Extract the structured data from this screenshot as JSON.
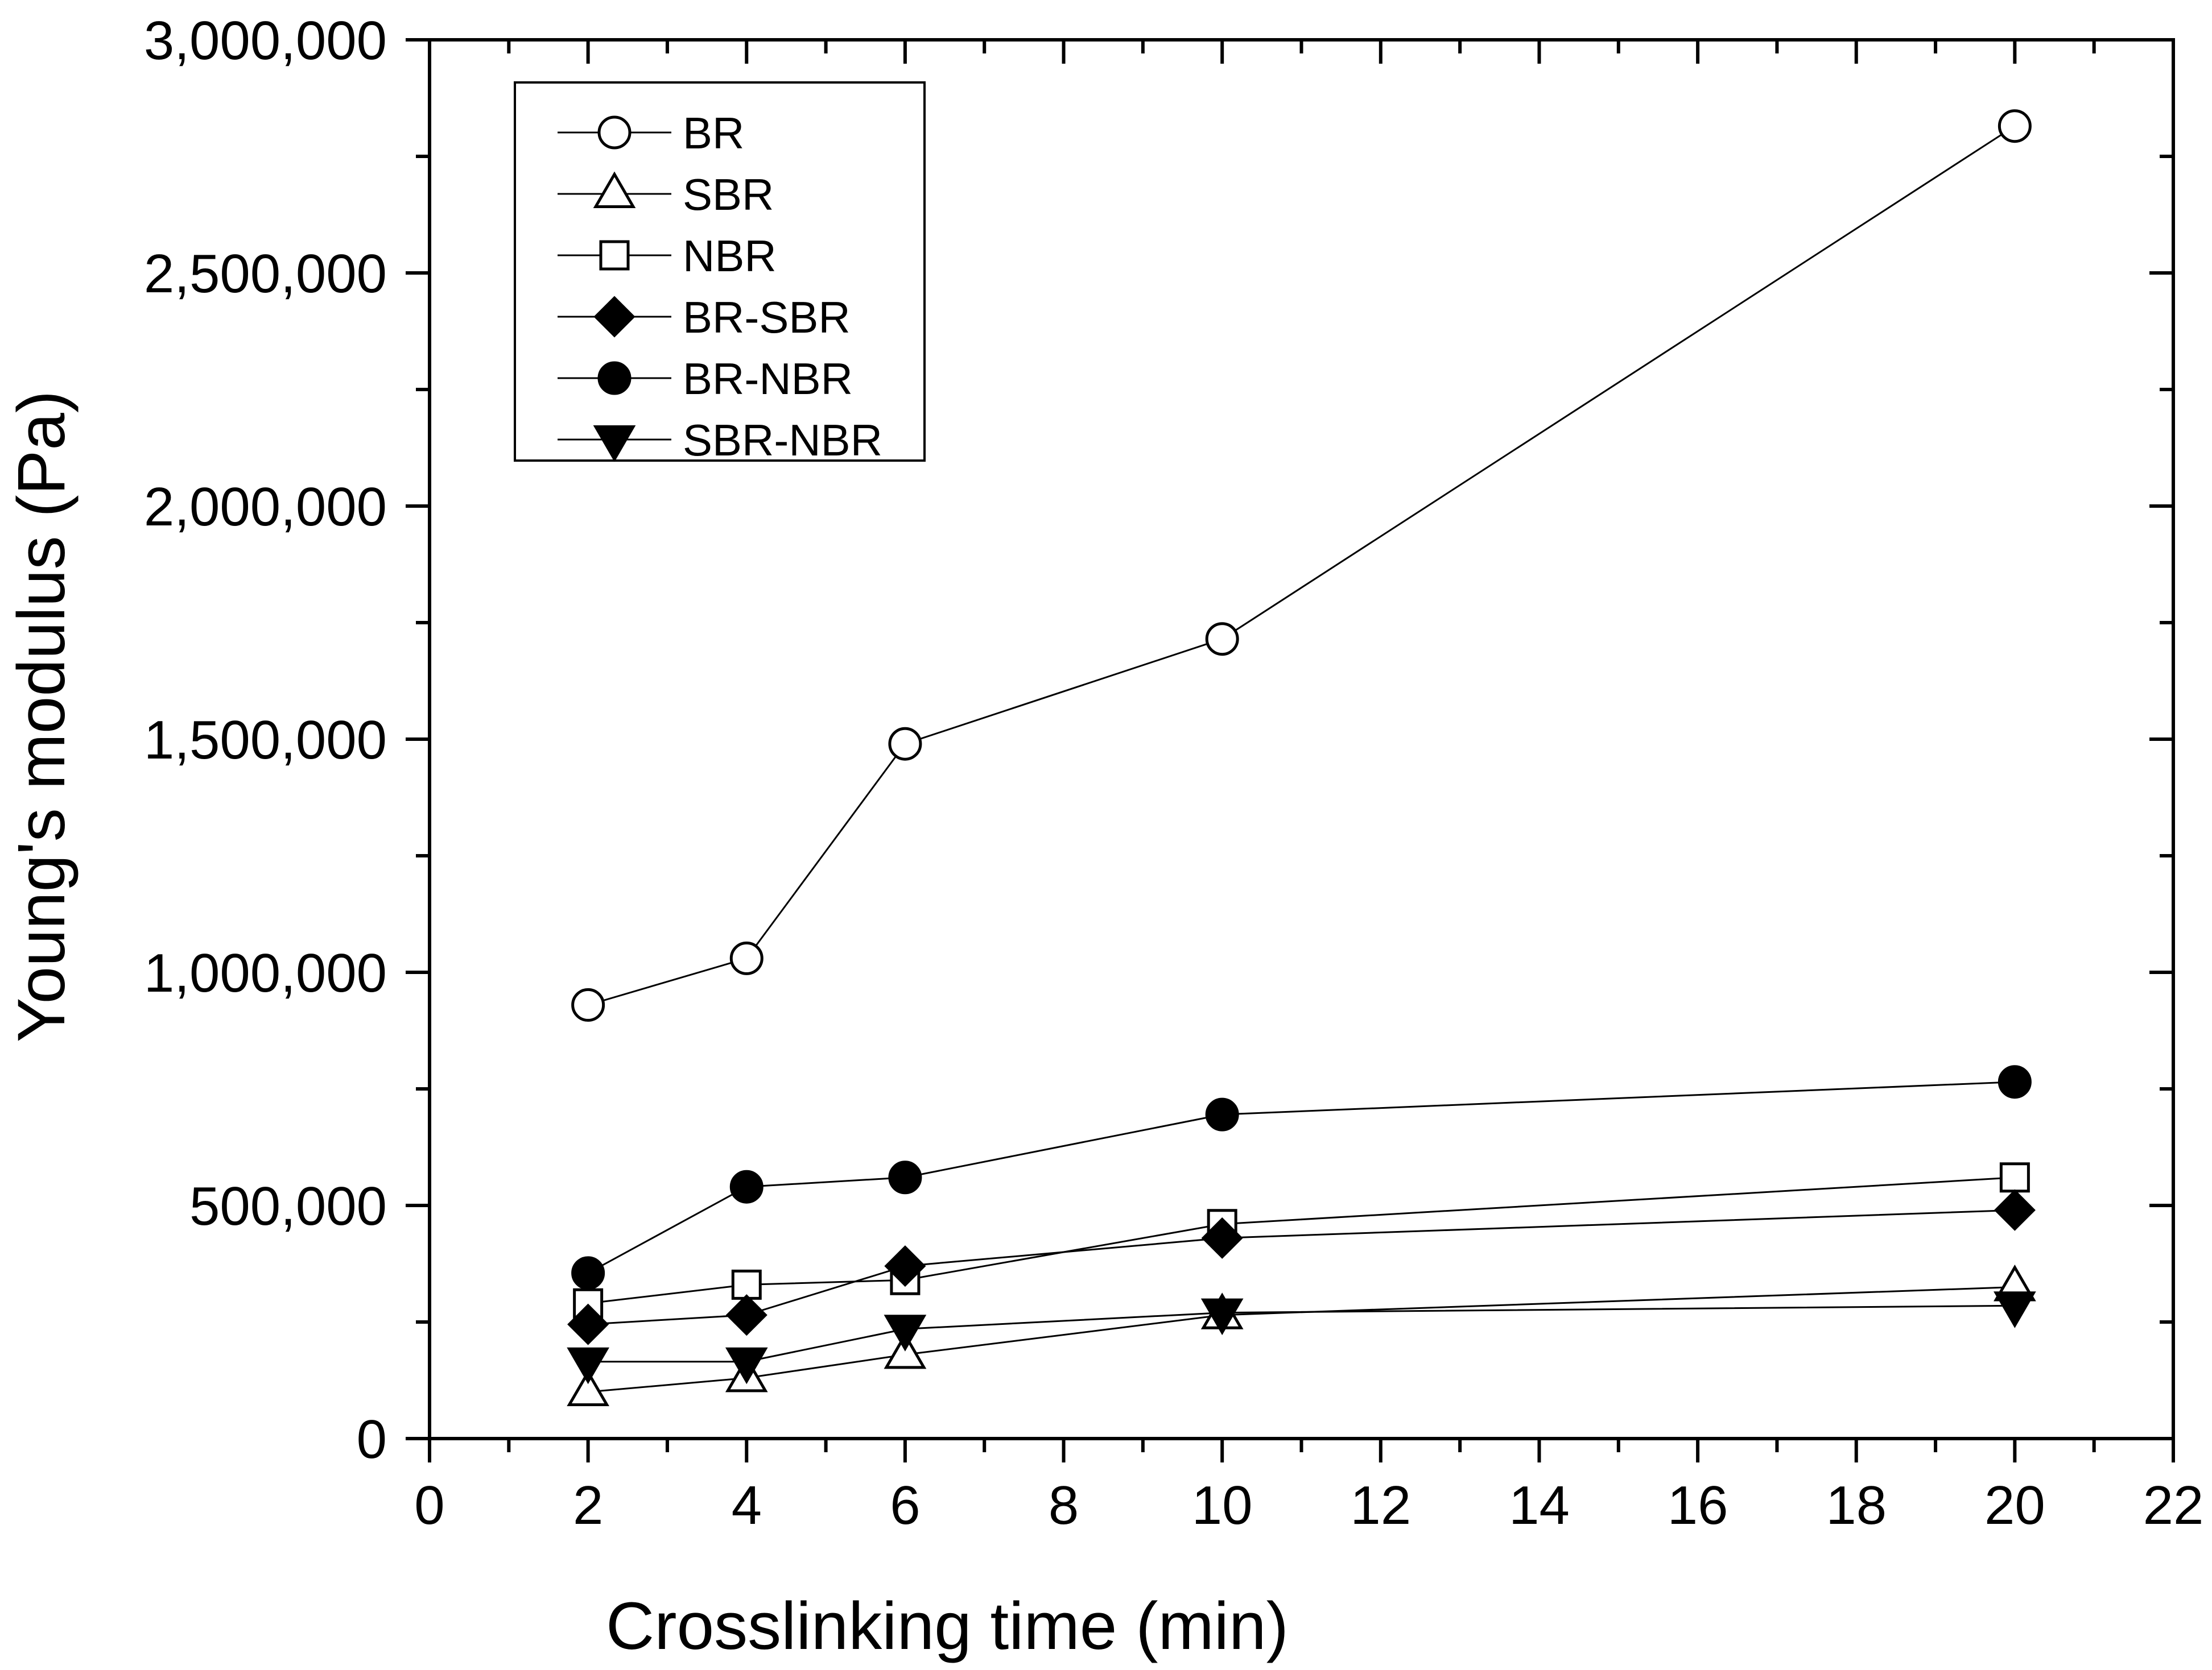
{
  "chart_data": {
    "type": "line",
    "title": "",
    "xlabel": "Crosslinking time (min)",
    "ylabel": "Young's modulus (Pa)",
    "xlim": [
      0,
      22
    ],
    "ylim": [
      0,
      3000000
    ],
    "xticks": [
      0,
      2,
      4,
      6,
      8,
      10,
      12,
      14,
      16,
      18,
      20,
      22
    ],
    "xtick_labels": [
      "0",
      "2",
      "4",
      "6",
      "8",
      "10",
      "12",
      "14",
      "16",
      "18",
      "20",
      "22"
    ],
    "yticks": [
      0,
      500000,
      1000000,
      1500000,
      2000000,
      2500000,
      3000000
    ],
    "ytick_labels": [
      "0",
      "500,000",
      "1,000,000",
      "1,500,000",
      "2,000,000",
      "2,500,000",
      "3,000,000"
    ],
    "grid": false,
    "legend_position": "top-left",
    "x": [
      2,
      4,
      6,
      10,
      20
    ],
    "series": [
      {
        "name": "BR",
        "marker": "circle-open",
        "values": [
          930000,
          1030000,
          1490000,
          1715000,
          2815000
        ]
      },
      {
        "name": "SBR",
        "marker": "triangle-up-open",
        "values": [
          100000,
          130000,
          180000,
          265000,
          325000
        ]
      },
      {
        "name": "NBR",
        "marker": "square-open",
        "values": [
          290000,
          330000,
          340000,
          460000,
          560000
        ]
      },
      {
        "name": "BR-SBR",
        "marker": "diamond-filled",
        "values": [
          245000,
          265000,
          370000,
          430000,
          490000
        ]
      },
      {
        "name": "BR-NBR",
        "marker": "circle-filled",
        "values": [
          355000,
          540000,
          560000,
          695000,
          765000
        ]
      },
      {
        "name": "SBR-NBR",
        "marker": "triangle-down-filled",
        "values": [
          165000,
          165000,
          235000,
          270000,
          285000
        ]
      }
    ]
  }
}
